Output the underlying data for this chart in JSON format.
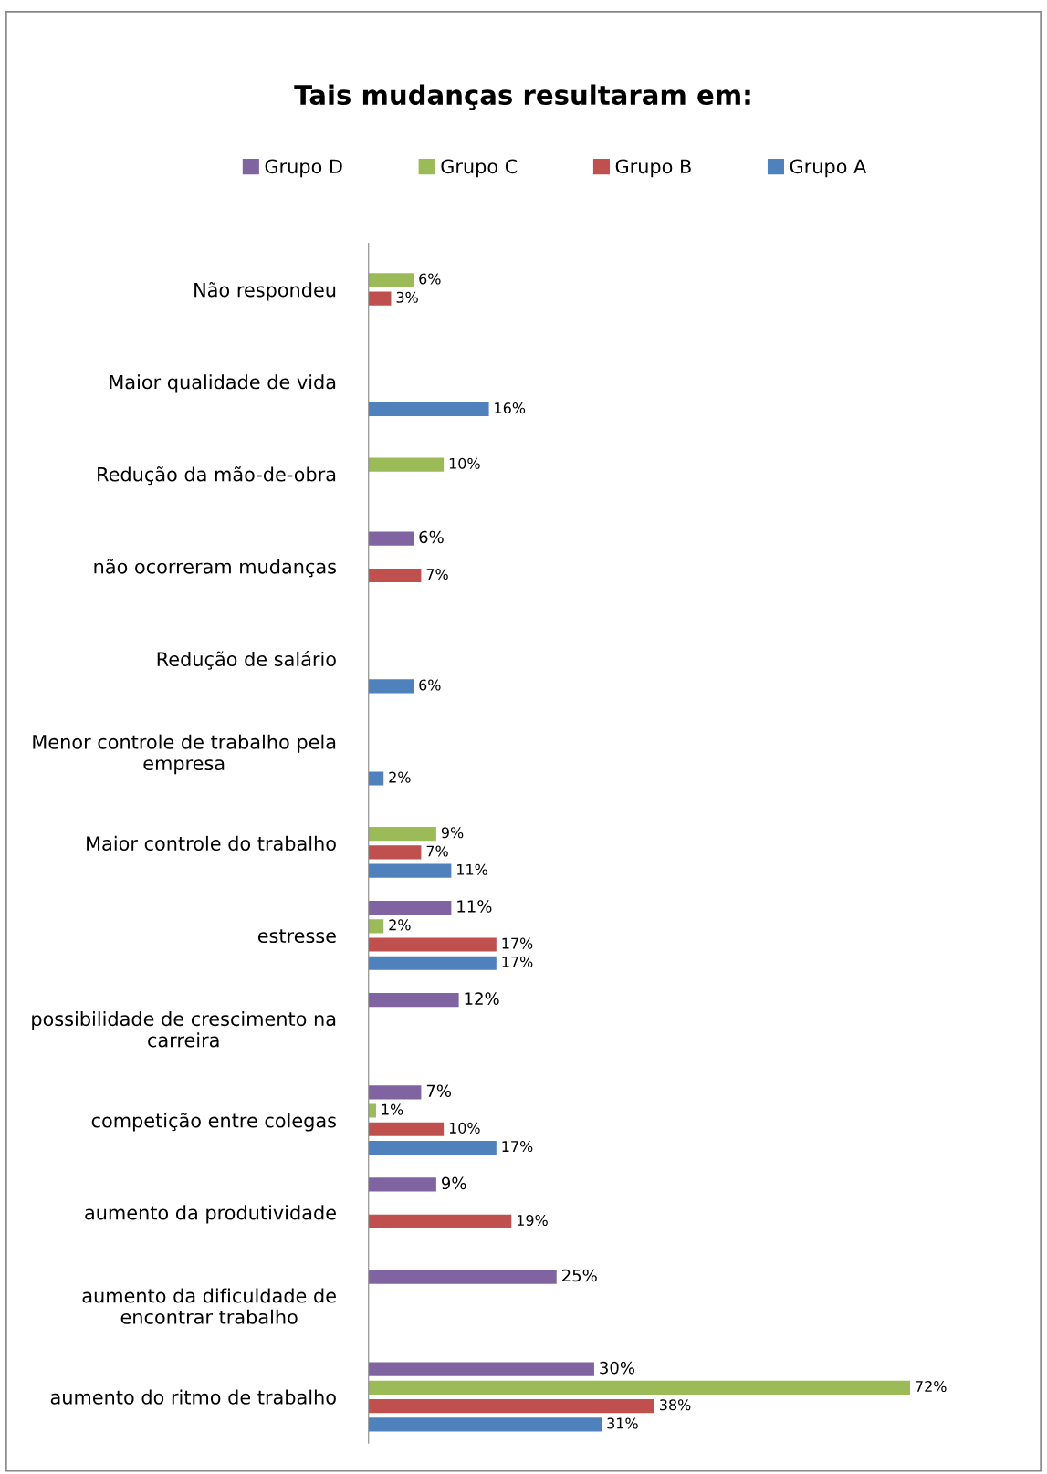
{
  "chart_data": {
    "type": "bar",
    "orientation": "horizontal",
    "title": "Tais mudanças resultaram em:",
    "categories": [
      "Não respondeu",
      "Maior qualidade de vida",
      "Redução da mão-de-obra",
      "não ocorreram mudanças",
      "Redução de salário",
      "Menor controle de trabalho pela empresa",
      "Maior controle do trabalho",
      "estresse",
      "possibilidade de crescimento na carreira",
      "competição entre colegas",
      "aumento da produtividade",
      "aumento da dificuldade de encontrar trabalho",
      "aumento do ritmo de trabalho"
    ],
    "series": [
      {
        "name": "Grupo D",
        "color": "#8064a2",
        "values": [
          null,
          null,
          null,
          6,
          null,
          null,
          null,
          11,
          12,
          7,
          9,
          25,
          30
        ],
        "value_labels": [
          null,
          null,
          null,
          "6%",
          null,
          null,
          null,
          "11%",
          "12%",
          "7%",
          "9%",
          "25%",
          "30%"
        ]
      },
      {
        "name": "Grupo C",
        "color": "#9bbb59",
        "values": [
          6,
          null,
          10,
          null,
          null,
          null,
          9,
          2,
          null,
          1,
          null,
          null,
          72
        ],
        "value_labels": [
          "6%",
          null,
          "10%",
          null,
          null,
          null,
          "9%",
          "2%",
          null,
          "1%",
          null,
          null,
          "72%"
        ]
      },
      {
        "name": "Grupo B",
        "color": "#c0504d",
        "values": [
          3,
          null,
          null,
          7,
          null,
          null,
          7,
          17,
          null,
          10,
          19,
          null,
          38
        ],
        "value_labels": [
          "3%",
          null,
          null,
          "7%",
          null,
          null,
          "7%",
          "17%",
          null,
          "10%",
          "19%",
          null,
          "38%"
        ]
      },
      {
        "name": "Grupo A",
        "color": "#4f81bd",
        "values": [
          null,
          16,
          null,
          null,
          6,
          2,
          11,
          17,
          null,
          17,
          null,
          null,
          31
        ],
        "value_labels": [
          null,
          "16%",
          null,
          null,
          "6%",
          "2%",
          "11%",
          "17%",
          null,
          "17%",
          null,
          null,
          "31%"
        ]
      }
    ],
    "legend": "top",
    "grid": false
  }
}
